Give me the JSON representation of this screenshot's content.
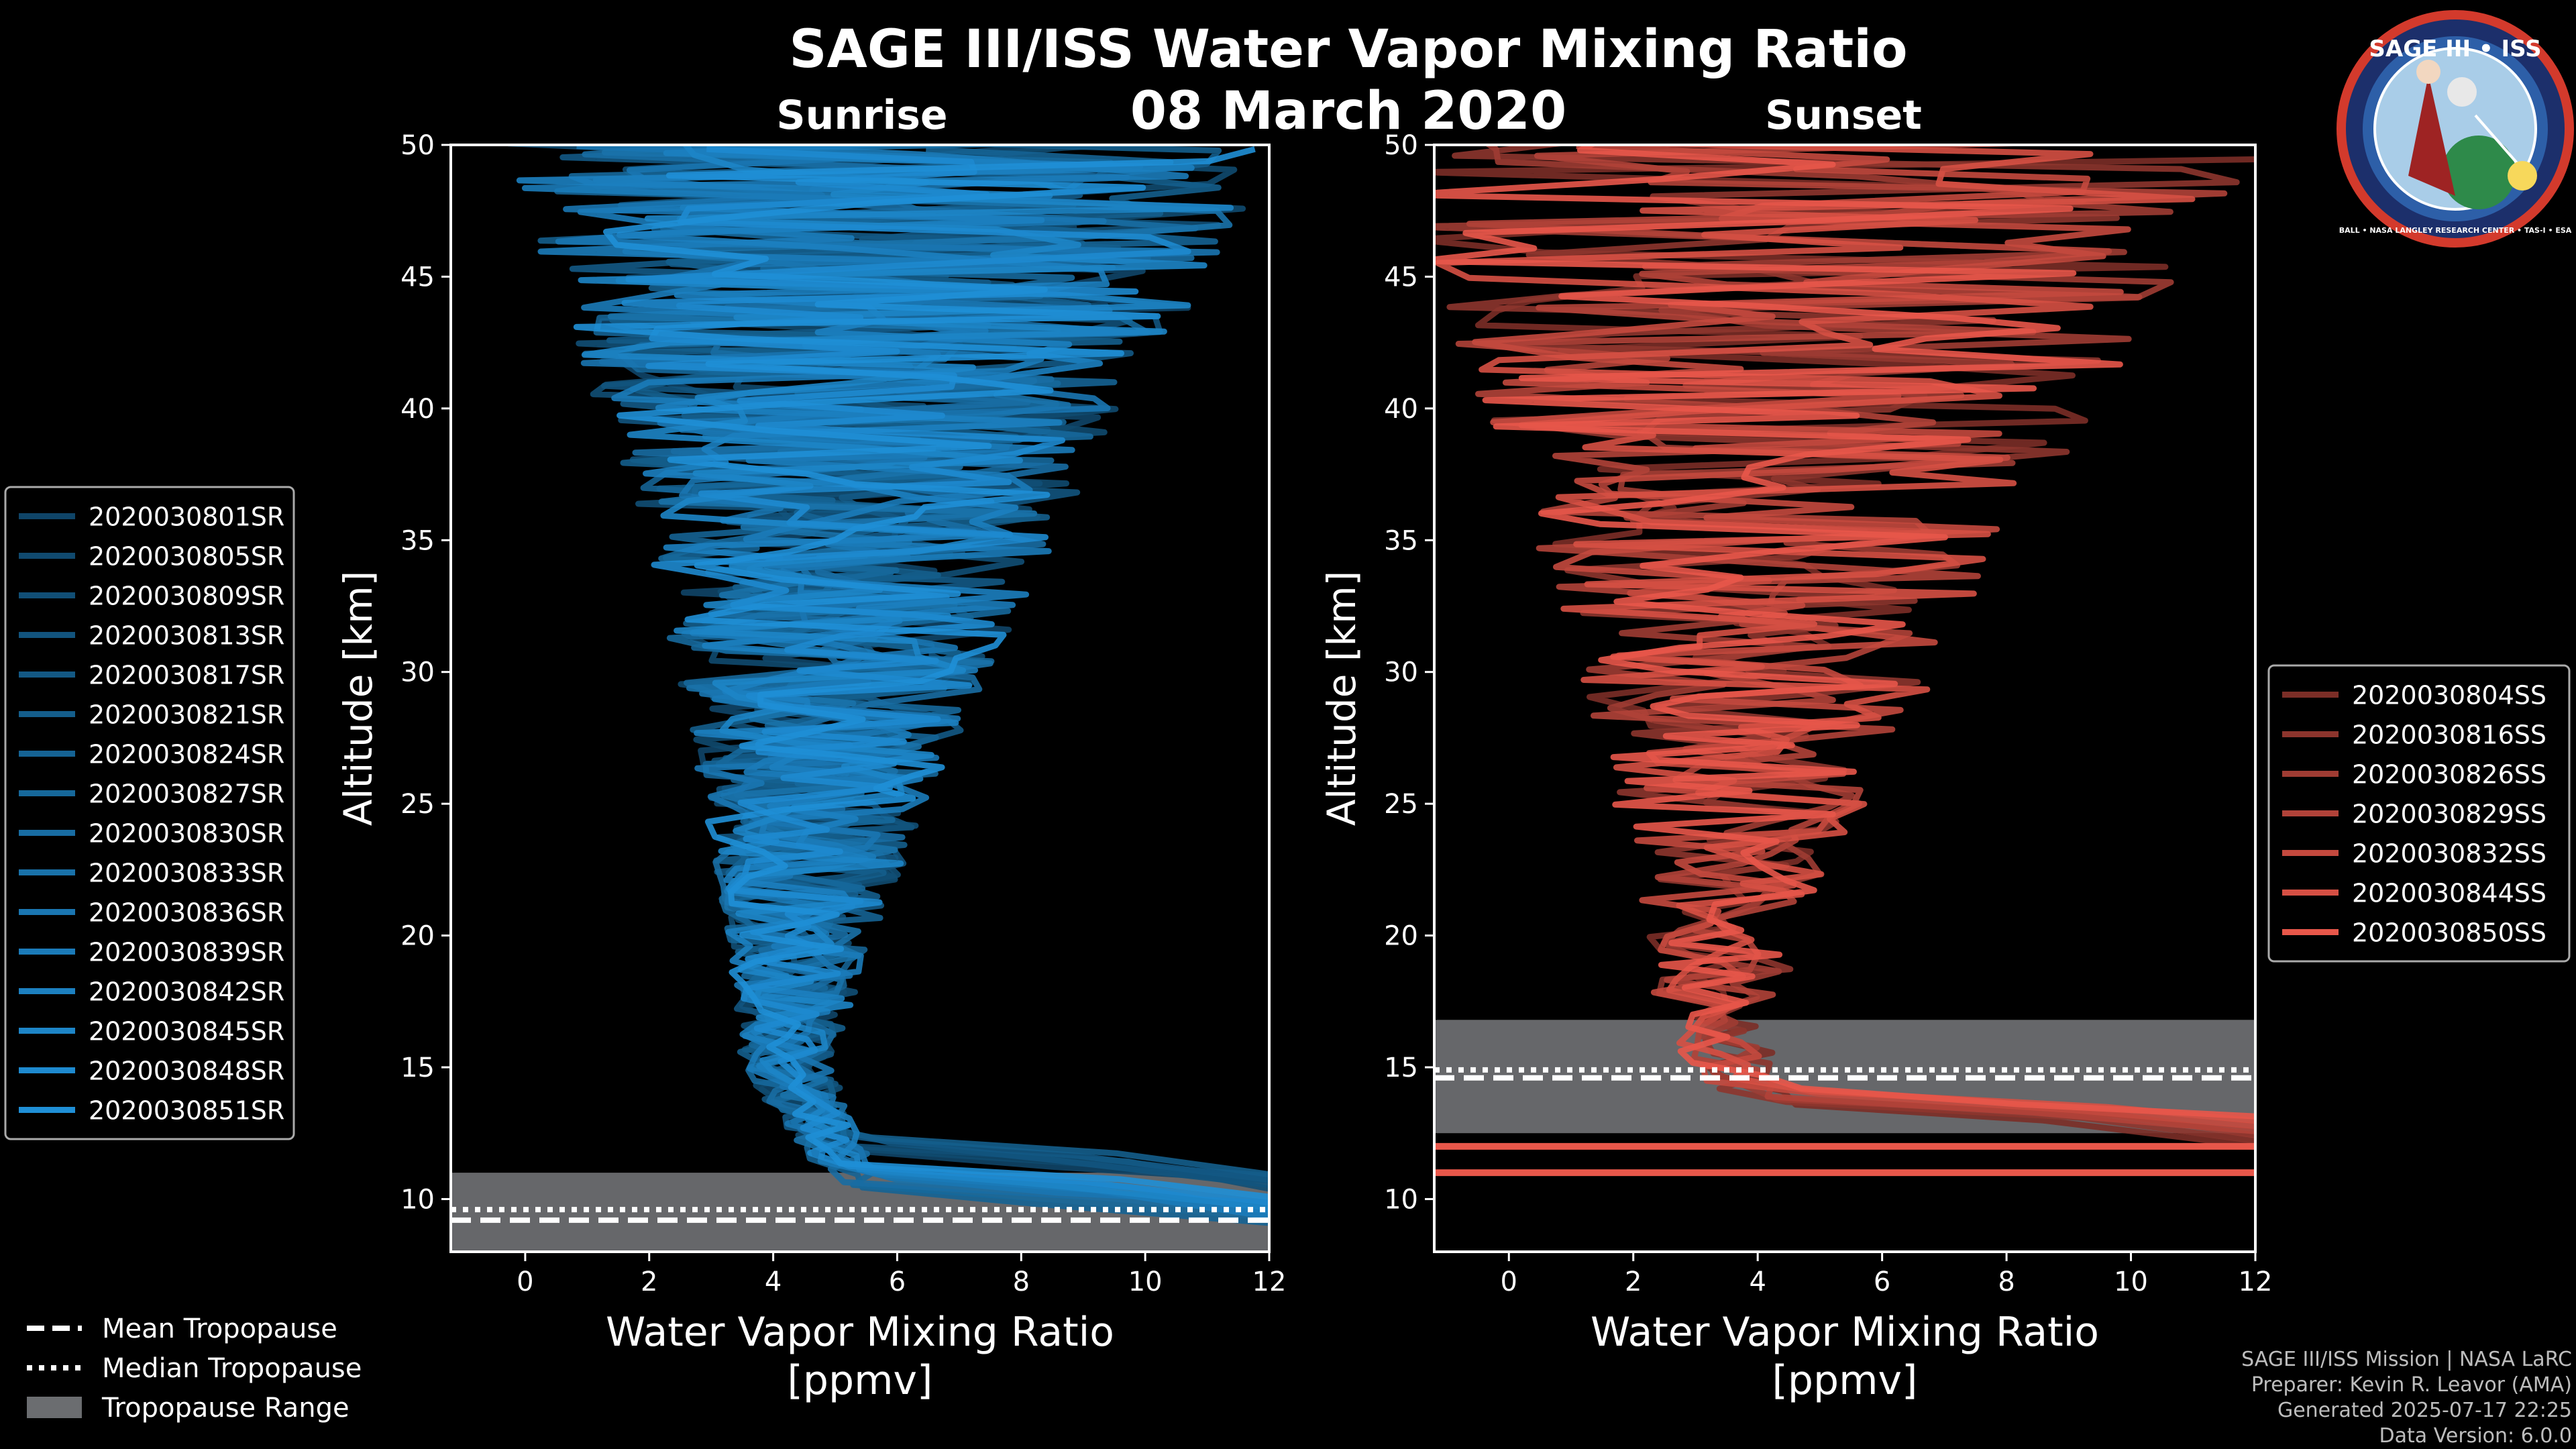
{
  "title": "SAGE III/ISS Water Vapor Mixing Ratio",
  "date": "08 March 2020",
  "logo": {
    "text": "SAGE III • ISS",
    "ring_text": "BALL • NASA LANGLEY RESEARCH CENTER • TAS-I • ESA"
  },
  "footer": {
    "mission": "SAGE III/ISS Mission | NASA LaRC",
    "preparer": "Preparer: Kevin R. Leavor (AMA)",
    "generated": "Generated 2025-07-17 22:25",
    "version": "Data Version: 6.0.0"
  },
  "tropo_legend": [
    {
      "label": "Mean Tropopause",
      "style": "dashed"
    },
    {
      "label": "Median Tropopause",
      "style": "dotted"
    },
    {
      "label": "Tropopause Range",
      "style": "patch"
    }
  ],
  "chart_data": [
    {
      "type": "line",
      "title": "Sunrise",
      "xlabel": "Water Vapor Mixing Ratio\n[ppmv]",
      "ylabel": "Altitude [km]",
      "xlim": [
        -1.2,
        12
      ],
      "ylim": [
        8,
        50
      ],
      "xticks": [
        0,
        2,
        4,
        6,
        8,
        10,
        12
      ],
      "yticks": [
        10,
        15,
        20,
        25,
        30,
        35,
        40,
        45,
        50
      ],
      "color": "#1f8fd6",
      "tropopause": {
        "mean": 9.2,
        "median": 9.6,
        "range": [
          8,
          11
        ]
      },
      "profile_shape": {
        "surface_km": 11,
        "min_ppmv_at_km": [
          4.2,
          15
        ],
        "spread_ppmv_at_top": 6
      },
      "series": [
        "2020030801SR",
        "2020030805SR",
        "2020030809SR",
        "2020030813SR",
        "2020030817SR",
        "2020030821SR",
        "2020030824SR",
        "2020030827SR",
        "2020030830SR",
        "2020030833SR",
        "2020030836SR",
        "2020030839SR",
        "2020030842SR",
        "2020030845SR",
        "2020030848SR",
        "2020030851SR"
      ]
    },
    {
      "type": "line",
      "title": "Sunset",
      "xlabel": "Water Vapor Mixing Ratio\n[ppmv]",
      "ylabel": "Altitude [km]",
      "xlim": [
        -1.2,
        12
      ],
      "ylim": [
        8,
        50
      ],
      "xticks": [
        0,
        2,
        4,
        6,
        8,
        10,
        12
      ],
      "yticks": [
        10,
        15,
        20,
        25,
        30,
        35,
        40,
        45,
        50
      ],
      "color": "#e8574a",
      "tropopause": {
        "mean": 14.6,
        "median": 14.9,
        "range": [
          12.5,
          16.8
        ]
      },
      "extra_hlines_km": [
        11,
        12
      ],
      "profile_shape": {
        "surface_km": 14,
        "min_ppmv_at_km": [
          3.3,
          16
        ],
        "spread_ppmv_at_top": 7
      },
      "series": [
        "2020030804SS",
        "2020030816SS",
        "2020030826SS",
        "2020030829SS",
        "2020030832SS",
        "2020030844SS",
        "2020030850SS"
      ]
    }
  ]
}
